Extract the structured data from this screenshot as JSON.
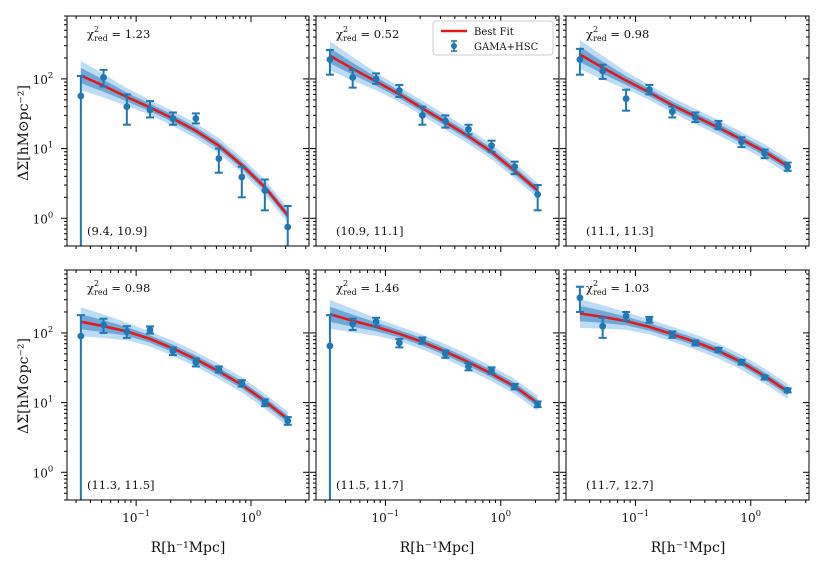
{
  "figure": {
    "xlabel": "R[h⁻¹Mpc]",
    "ylabel": "ΔΣ[hM⊙pc⁻²]",
    "legend": [
      {
        "label": "Best Fit",
        "kind": "line"
      },
      {
        "label": "GAMA+HSC",
        "kind": "errorbar"
      }
    ],
    "colors": {
      "fit": "#e31a1c",
      "data": "#1f77b4",
      "band_inner": "#5b9bd0",
      "band_outer": "#a6cff0"
    }
  },
  "chart_data": [
    {
      "type": "line",
      "xscale": "log",
      "yscale": "log",
      "xlim": [
        0.025,
        3.2
      ],
      "ylim": [
        0.4,
        800
      ],
      "bin": "(9.4, 10.9]",
      "chi2_label": "χ²_red = 1.23",
      "x": [
        0.033,
        0.052,
        0.083,
        0.132,
        0.209,
        0.331,
        0.525,
        0.832,
        1.32,
        2.09
      ],
      "y": [
        57,
        105,
        40,
        36,
        27,
        27,
        7.2,
        3.9,
        2.5,
        0.75
      ],
      "ylo": [
        0.3,
        78,
        22,
        28,
        22,
        23,
        4.5,
        2.0,
        1.3,
        0.3
      ],
      "yhi": [
        110,
        135,
        60,
        48,
        33,
        32,
        10,
        5.5,
        3.6,
        1.5
      ],
      "fit_x": [
        0.033,
        0.052,
        0.083,
        0.132,
        0.209,
        0.331,
        0.525,
        0.832,
        1.32,
        2.09
      ],
      "fit": [
        112,
        80,
        55,
        39,
        27,
        18,
        11,
        5.8,
        2.8,
        1.1
      ]
    },
    {
      "type": "line",
      "xscale": "log",
      "yscale": "log",
      "xlim": [
        0.025,
        3.2
      ],
      "ylim": [
        0.4,
        800
      ],
      "bin": "(10.9, 11.1]",
      "chi2_label": "χ²_red = 0.52",
      "x": [
        0.033,
        0.052,
        0.083,
        0.132,
        0.209,
        0.331,
        0.525,
        0.832,
        1.32,
        2.09
      ],
      "y": [
        190,
        105,
        100,
        68,
        30,
        25,
        19,
        11,
        5.5,
        2.2
      ],
      "ylo": [
        115,
        75,
        85,
        55,
        22,
        20,
        16,
        9,
        4.3,
        1.3
      ],
      "yhi": [
        260,
        135,
        120,
        82,
        40,
        30,
        22,
        13,
        6.5,
        3.0
      ],
      "fit_x": [
        0.033,
        0.052,
        0.083,
        0.132,
        0.209,
        0.331,
        0.525,
        0.832,
        1.32,
        2.09
      ],
      "fit": [
        215,
        140,
        92,
        60,
        38,
        24,
        15,
        9,
        4.8,
        2.5
      ]
    },
    {
      "type": "line",
      "xscale": "log",
      "yscale": "log",
      "xlim": [
        0.025,
        3.2
      ],
      "ylim": [
        0.4,
        800
      ],
      "bin": "(11.1, 11.3]",
      "chi2_label": "χ²_red = 0.98",
      "x": [
        0.033,
        0.052,
        0.083,
        0.132,
        0.209,
        0.331,
        0.525,
        0.832,
        1.32,
        2.09
      ],
      "y": [
        190,
        130,
        52,
        70,
        34,
        28,
        22,
        12.5,
        8.5,
        5.5
      ],
      "ylo": [
        115,
        100,
        35,
        60,
        28,
        24,
        19,
        10.5,
        7.3,
        4.8
      ],
      "yhi": [
        270,
        160,
        70,
        82,
        40,
        33,
        25,
        14.5,
        9.7,
        6.3
      ],
      "fit_x": [
        0.033,
        0.052,
        0.083,
        0.132,
        0.209,
        0.331,
        0.525,
        0.832,
        1.32,
        2.09
      ],
      "fit": [
        225,
        145,
        95,
        64,
        42,
        29,
        20,
        13.5,
        9,
        5.6
      ]
    },
    {
      "type": "line",
      "xscale": "log",
      "yscale": "log",
      "xlim": [
        0.025,
        3.2
      ],
      "ylim": [
        0.4,
        800
      ],
      "bin": "(11.3, 11.5]",
      "chi2_label": "χ²_red = 0.98",
      "x": [
        0.033,
        0.052,
        0.083,
        0.132,
        0.209,
        0.331,
        0.525,
        0.832,
        1.32,
        2.09
      ],
      "y": [
        90,
        130,
        105,
        110,
        55,
        38,
        30,
        19,
        10,
        5.5
      ],
      "ylo": [
        0.3,
        100,
        85,
        98,
        48,
        33,
        27,
        17,
        8.9,
        4.8
      ],
      "yhi": [
        180,
        160,
        125,
        124,
        62,
        43,
        33,
        21,
        11.1,
        6.2
      ],
      "fit_x": [
        0.033,
        0.052,
        0.083,
        0.132,
        0.209,
        0.331,
        0.525,
        0.832,
        1.32,
        2.09
      ],
      "fit": [
        145,
        125,
        105,
        82,
        60,
        42,
        28,
        18,
        10.5,
        5.8
      ]
    },
    {
      "type": "line",
      "xscale": "log",
      "yscale": "log",
      "xlim": [
        0.025,
        3.2
      ],
      "ylim": [
        0.4,
        800
      ],
      "bin": "(11.5, 11.7]",
      "chi2_label": "χ²_red = 1.46",
      "x": [
        0.033,
        0.052,
        0.083,
        0.132,
        0.209,
        0.331,
        0.525,
        0.832,
        1.32,
        2.09
      ],
      "y": [
        65,
        135,
        145,
        72,
        78,
        50,
        33,
        29,
        17,
        9.5
      ],
      "ylo": [
        0.3,
        110,
        125,
        62,
        70,
        44,
        29,
        26,
        15.5,
        8.6
      ],
      "yhi": [
        180,
        160,
        165,
        82,
        86,
        56,
        37,
        32,
        18.5,
        10.4
      ],
      "fit_x": [
        0.033,
        0.052,
        0.083,
        0.132,
        0.209,
        0.331,
        0.525,
        0.832,
        1.32,
        2.09
      ],
      "fit": [
        185,
        150,
        122,
        97,
        74,
        54,
        38,
        26,
        17,
        9.8
      ]
    },
    {
      "type": "line",
      "xscale": "log",
      "yscale": "log",
      "xlim": [
        0.025,
        3.2
      ],
      "ylim": [
        0.4,
        800
      ],
      "bin": "(11.7, 12.7]",
      "chi2_label": "χ²_red = 1.03",
      "x": [
        0.033,
        0.052,
        0.083,
        0.132,
        0.209,
        0.331,
        0.525,
        0.832,
        1.32,
        2.09
      ],
      "y": [
        320,
        125,
        175,
        155,
        95,
        72,
        57,
        38,
        23,
        15
      ],
      "ylo": [
        200,
        85,
        150,
        140,
        85,
        66,
        53,
        35,
        21.5,
        14
      ],
      "yhi": [
        460,
        165,
        200,
        170,
        105,
        78,
        61,
        41,
        24.5,
        16
      ],
      "fit_x": [
        0.033,
        0.052,
        0.083,
        0.132,
        0.209,
        0.331,
        0.525,
        0.832,
        1.32,
        2.09
      ],
      "fit": [
        190,
        170,
        148,
        122,
        96,
        74,
        55,
        38,
        24,
        14.5
      ]
    }
  ]
}
